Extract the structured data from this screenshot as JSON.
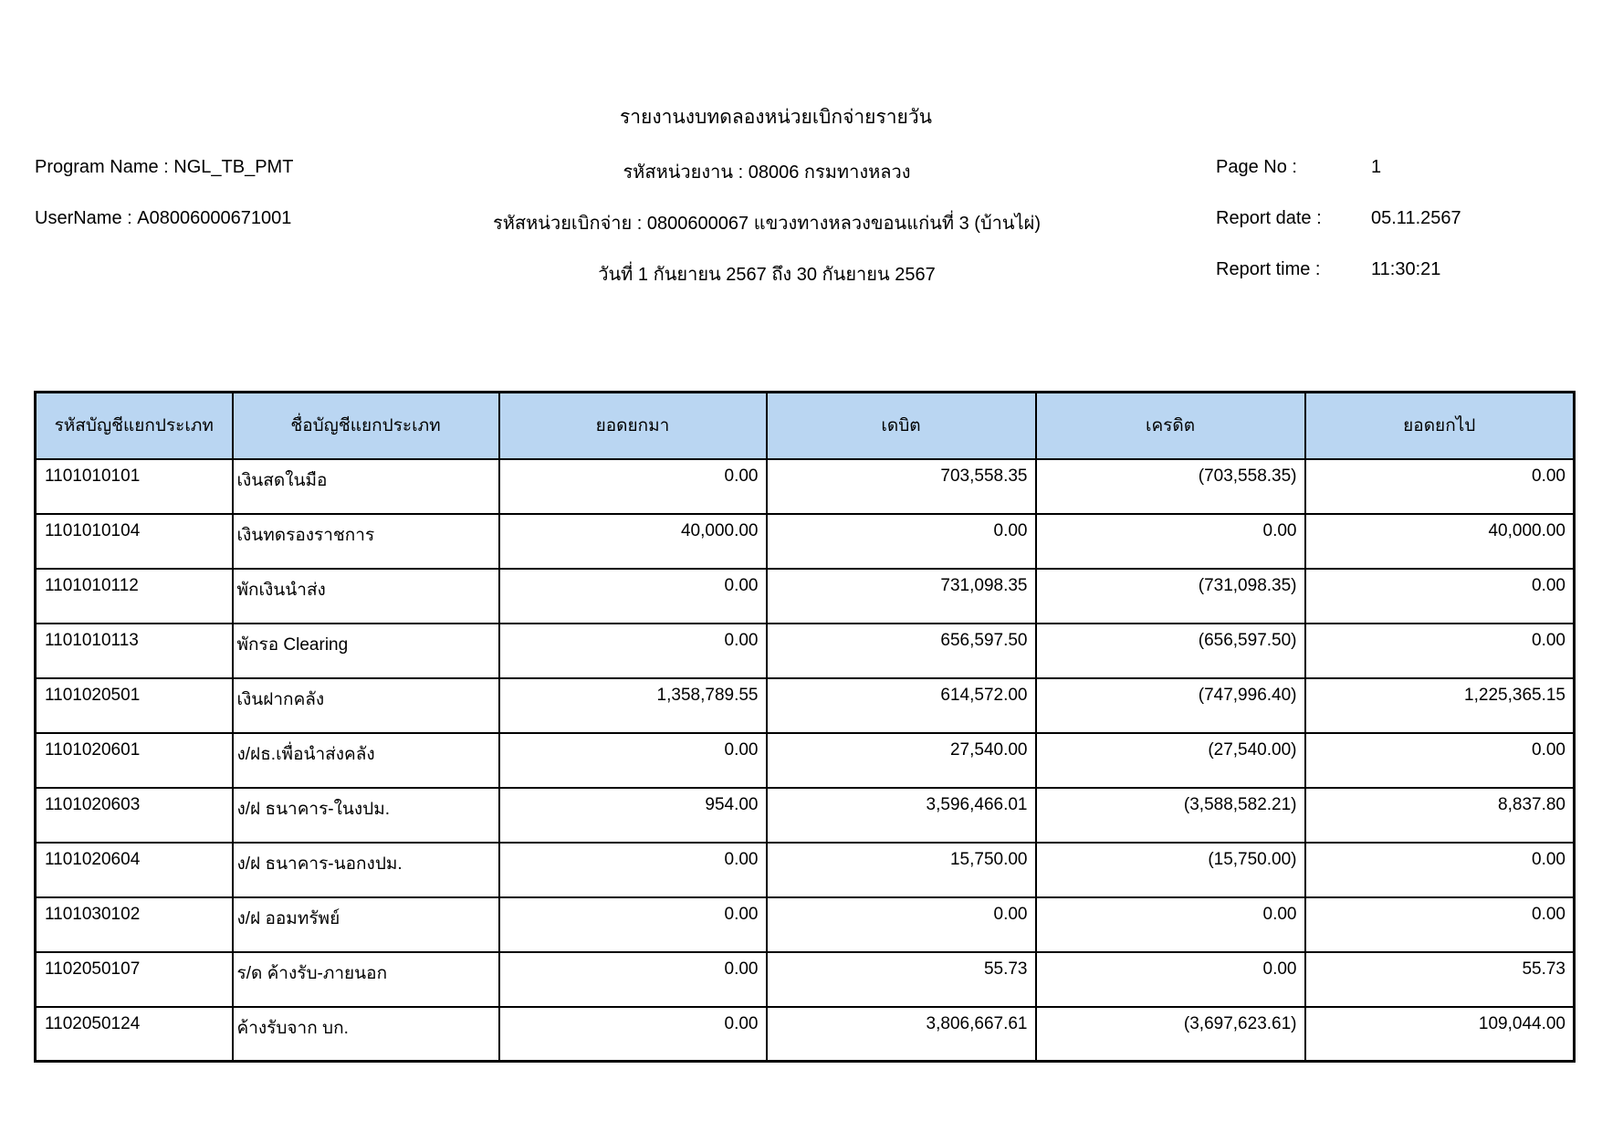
{
  "report": {
    "title": "รายงานงบทดลองหน่วยเบิกจ่ายรายวัน",
    "program_name_label": "Program Name :",
    "program_name": "NGL_TB_PMT",
    "username_label": "UserName :",
    "username": "A08006000671001",
    "agency_line": "รหัสหน่วยงาน : 08006 กรมทางหลวง",
    "disbursing_unit_line": "รหัสหน่วยเบิกจ่าย : 0800600067 แขวงทางหลวงขอนแก่นที่ 3 (บ้านไผ่)",
    "date_range_line": "วันที่ 1 กันยายน 2567 ถึง 30 กันยายน 2567",
    "page_no_label": "Page No :",
    "page_no": "1",
    "report_date_label": "Report date :",
    "report_date": "05.11.2567",
    "report_time_label": "Report time :",
    "report_time": "11:30:21"
  },
  "table": {
    "header_bg": "#BAD6F2",
    "columns": [
      "รหัสบัญชีแยกประเภท",
      "ชื่อบัญชีแยกประเภท",
      "ยอดยกมา",
      "เดบิต",
      "เครดิต",
      "ยอดยกไป"
    ],
    "rows": [
      [
        "1101010101",
        "เงินสดในมือ",
        "0.00",
        "703,558.35",
        "(703,558.35)",
        "0.00"
      ],
      [
        "1101010104",
        "เงินทดรองราชการ",
        "40,000.00",
        "0.00",
        "0.00",
        "40,000.00"
      ],
      [
        "1101010112",
        "พักเงินนำส่ง",
        "0.00",
        "731,098.35",
        "(731,098.35)",
        "0.00"
      ],
      [
        "1101010113",
        "พักรอ Clearing",
        "0.00",
        "656,597.50",
        "(656,597.50)",
        "0.00"
      ],
      [
        "1101020501",
        "เงินฝากคลัง",
        "1,358,789.55",
        "614,572.00",
        "(747,996.40)",
        "1,225,365.15"
      ],
      [
        "1101020601",
        "ง/ฝธ.เพื่อนำส่งคลัง",
        "0.00",
        "27,540.00",
        "(27,540.00)",
        "0.00"
      ],
      [
        "1101020603",
        "ง/ฝ ธนาคาร-ในงปม.",
        "954.00",
        "3,596,466.01",
        "(3,588,582.21)",
        "8,837.80"
      ],
      [
        "1101020604",
        "ง/ฝ ธนาคาร-นอกงปม.",
        "0.00",
        "15,750.00",
        "(15,750.00)",
        "0.00"
      ],
      [
        "1101030102",
        "ง/ฝ ออมทรัพย์",
        "0.00",
        "0.00",
        "0.00",
        "0.00"
      ],
      [
        "1102050107",
        "ร/ด ค้างรับ-ภายนอก",
        "0.00",
        "55.73",
        "0.00",
        "55.73"
      ],
      [
        "1102050124",
        "ค้างรับจาก บก.",
        "0.00",
        "3,806,667.61",
        "(3,697,623.61)",
        "109,044.00"
      ]
    ]
  }
}
